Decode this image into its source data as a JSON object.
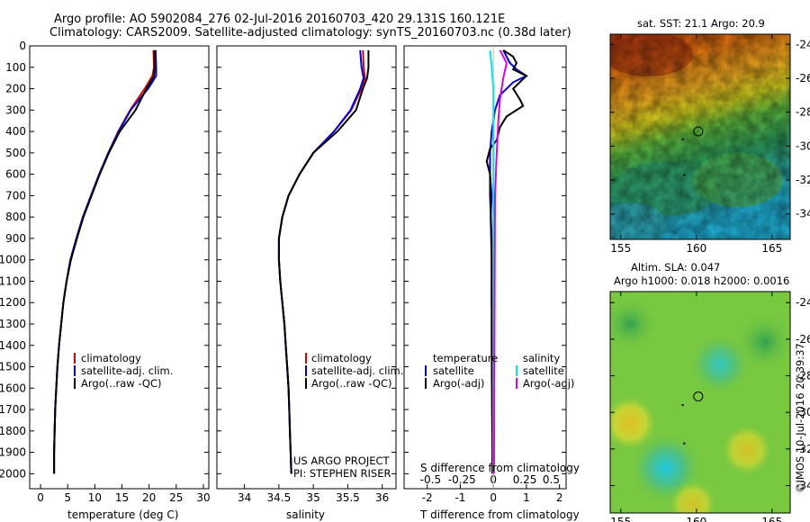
{
  "header": {
    "line1": "Argo profile: AO 5902084_276 02-Jul-2016 20160703_420 29.131S 160.121E",
    "line2": "Climatology: CARS2009. Satellite-adjusted climatology: synTS_20160703.nc (0.38d later)"
  },
  "colors": {
    "climatology": "#e00000",
    "satellite": "#0000e0",
    "argo": "#000000",
    "sal_satellite": "#00e8e8",
    "sal_argo": "#e000e0"
  },
  "chart_data": [
    {
      "type": "line",
      "name": "temperature",
      "xlabel": "temperature (deg C)",
      "ylabel": "",
      "xlim": [
        -2,
        31
      ],
      "ylim": [
        2070,
        0
      ],
      "xticks": [
        "0",
        "5",
        "10",
        "15",
        "20",
        "25",
        "30"
      ],
      "xtick_values": [
        0,
        5,
        10,
        15,
        20,
        25,
        30
      ],
      "yticks": [
        "0",
        "100",
        "200",
        "300",
        "400",
        "500",
        "600",
        "700",
        "800",
        "900",
        "1000",
        "1100",
        "1200",
        "1300",
        "1400",
        "1500",
        "1600",
        "1700",
        "1800",
        "1900",
        "2000"
      ],
      "legend": [
        "climatology",
        "satellite-adj. clim.",
        "Argo(..raw -QC)"
      ],
      "series": [
        {
          "name": "climatology",
          "color": "#e00000",
          "x": [
            20.8,
            20.9,
            20.6,
            19.2,
            16.5,
            14.3,
            12.5,
            10.8,
            9.3,
            7.8,
            6.6,
            5.5,
            4.8,
            4.2,
            3.8,
            3.4,
            3.1,
            2.9,
            2.7,
            2.6,
            2.5,
            2.5
          ],
          "y": [
            20,
            100,
            140,
            200,
            300,
            400,
            500,
            600,
            700,
            800,
            900,
            1000,
            1100,
            1200,
            1300,
            1400,
            1500,
            1600,
            1700,
            1800,
            1900,
            2000
          ]
        },
        {
          "name": "satellite-adj. clim.",
          "color": "#0000e0",
          "x": [
            21.2,
            21.3,
            21.3,
            19.8,
            16.6,
            14.4,
            12.5,
            10.8,
            9.3,
            7.8,
            6.6,
            5.5,
            4.8,
            4.2,
            3.8,
            3.4,
            3.1,
            2.9,
            2.7,
            2.6,
            2.5,
            2.5
          ],
          "y": [
            20,
            100,
            140,
            200,
            300,
            400,
            500,
            600,
            700,
            800,
            900,
            1000,
            1100,
            1200,
            1300,
            1400,
            1500,
            1600,
            1700,
            1800,
            1900,
            2000
          ]
        },
        {
          "name": "Argo(..raw -QC)",
          "color": "#000000",
          "x": [
            21.0,
            21.0,
            20.9,
            19.5,
            17.5,
            14.6,
            12.6,
            10.9,
            9.4,
            7.9,
            6.7,
            5.6,
            4.8,
            4.2,
            3.8,
            3.4,
            3.1,
            2.9,
            2.7,
            2.6,
            2.5,
            2.5
          ],
          "y": [
            20,
            100,
            140,
            200,
            300,
            400,
            500,
            600,
            700,
            800,
            900,
            1000,
            1100,
            1200,
            1300,
            1400,
            1500,
            1600,
            1700,
            1800,
            1900,
            2000
          ]
        }
      ]
    },
    {
      "type": "line",
      "name": "salinity",
      "xlabel": "salinity",
      "ylabel": "",
      "xlim": [
        33.6,
        36.2
      ],
      "ylim": [
        2070,
        0
      ],
      "xticks": [
        "34",
        "34.5",
        "35",
        "35.5",
        "36"
      ],
      "xtick_values": [
        34,
        34.5,
        35,
        35.5,
        36
      ],
      "legend": [
        "climatology",
        "satellite-adj. clim.",
        "Argo(..raw -QC)"
      ],
      "annotation": [
        "US ARGO PROJECT",
        "PI: STEPHEN RISER"
      ],
      "series": [
        {
          "name": "climatology",
          "color": "#e00000",
          "x": [
            35.72,
            35.73,
            35.75,
            35.7,
            35.55,
            35.3,
            35.0,
            34.8,
            34.64,
            34.55,
            34.5,
            34.5,
            34.52,
            34.55,
            34.58,
            34.6,
            34.62,
            34.64,
            34.65,
            34.66,
            34.67,
            34.68
          ],
          "y": [
            20,
            100,
            150,
            200,
            300,
            400,
            500,
            600,
            700,
            800,
            900,
            1000,
            1100,
            1200,
            1300,
            1400,
            1500,
            1600,
            1700,
            1800,
            1900,
            2000
          ]
        },
        {
          "name": "satellite-adj. clim.",
          "color": "#0000e0",
          "x": [
            35.68,
            35.7,
            35.73,
            35.68,
            35.54,
            35.3,
            35.0,
            34.8,
            34.64,
            34.55,
            34.5,
            34.5,
            34.52,
            34.55,
            34.58,
            34.6,
            34.62,
            34.64,
            34.65,
            34.66,
            34.67,
            34.68
          ],
          "y": [
            20,
            100,
            150,
            200,
            300,
            400,
            500,
            600,
            700,
            800,
            900,
            1000,
            1100,
            1200,
            1300,
            1400,
            1500,
            1600,
            1700,
            1800,
            1900,
            2000
          ]
        },
        {
          "name": "Argo(..raw -QC)",
          "color": "#000000",
          "x": [
            35.8,
            35.8,
            35.78,
            35.72,
            35.62,
            35.35,
            35.0,
            34.8,
            34.64,
            34.55,
            34.5,
            34.5,
            34.52,
            34.55,
            34.58,
            34.6,
            34.62,
            34.64,
            34.65,
            34.66,
            34.67,
            34.68
          ],
          "y": [
            20,
            100,
            150,
            200,
            300,
            400,
            500,
            600,
            700,
            800,
            900,
            1000,
            1100,
            1200,
            1300,
            1400,
            1500,
            1600,
            1700,
            1800,
            1900,
            2000
          ]
        }
      ]
    },
    {
      "type": "line",
      "name": "difference",
      "xlabel": "T difference from climatology",
      "top_label": "S difference from climatology",
      "xlim": [
        -2.7,
        2.2
      ],
      "ylim": [
        2070,
        0
      ],
      "xticks": [
        "-2",
        "-1",
        "0",
        "1",
        "2"
      ],
      "xtick_values": [
        -2,
        -1,
        0,
        1,
        2
      ],
      "top_ticks": [
        "-0.5",
        "-0.25",
        "0",
        "0.25",
        "0.5"
      ],
      "top_tick_positions_T": [
        -1.9,
        -0.95,
        0,
        0.95,
        1.75
      ],
      "legend_temperature_title": "temperature",
      "legend_salinity_title": "salinity",
      "legend_temperature": [
        "satellite",
        "Argo(-adj)"
      ],
      "legend_salinity": [
        "satellite",
        "Argo(-adj)"
      ],
      "series": [
        {
          "name": "T satellite",
          "color": "#0000e0",
          "x": [
            0.3,
            0.4,
            0.5,
            0.7,
            1.0,
            0.6,
            0.2,
            0.05,
            -0.05,
            -0.1,
            -0.1,
            -0.05,
            -0.08,
            -0.05,
            -0.05,
            -0.03,
            -0.03,
            -0.02,
            -0.02,
            -0.02
          ],
          "y": [
            20,
            50,
            80,
            110,
            140,
            170,
            230,
            300,
            400,
            500,
            600,
            700,
            800,
            1000,
            1200,
            1400,
            1600,
            1800,
            1900,
            2000
          ]
        },
        {
          "name": "T Argo(-adj)",
          "color": "#000000",
          "x": [
            0.3,
            0.6,
            0.7,
            0.6,
            1.0,
            0.6,
            0.8,
            0.9,
            0.4,
            0.2,
            0.1,
            -0.1,
            -0.2,
            -0.1,
            -0.1,
            -0.05,
            -0.05,
            -0.05,
            -0.04,
            -0.03,
            -0.03
          ],
          "y": [
            20,
            50,
            80,
            110,
            140,
            200,
            250,
            280,
            330,
            380,
            440,
            480,
            540,
            600,
            700,
            900,
            1100,
            1400,
            1700,
            1900,
            2000
          ]
        },
        {
          "name": "S satellite",
          "color": "#00e8e8",
          "x": [
            -0.1,
            -0.05,
            0.0,
            0.0,
            0.0,
            0.0,
            0.0,
            0.0,
            0.0,
            0.0
          ],
          "y": [
            20,
            100,
            200,
            300,
            400,
            600,
            900,
            1200,
            1600,
            2000
          ]
        },
        {
          "name": "S Argo(-adj)",
          "color": "#e000e0",
          "x": [
            0.2,
            0.4,
            0.3,
            0.2,
            0.15,
            0.1,
            0.05,
            0.04,
            0.03,
            0.02
          ],
          "y": [
            20,
            80,
            150,
            250,
            350,
            500,
            700,
            1000,
            1500,
            2000
          ]
        }
      ]
    }
  ],
  "maps": {
    "sst": {
      "title": "sat. SST: 21.1  Argo: 20.9",
      "xticks": [
        "155",
        "160",
        "165"
      ],
      "yticks": [
        "-24",
        "-26",
        "-28",
        "-30",
        "-32",
        "-34"
      ],
      "float_lon": 160.121,
      "float_lat": -29.131
    },
    "sla": {
      "title_line1": "Altim. SLA: 0.047",
      "title_line2": "Argo h1000: 0.018 h2000: 0.0016",
      "xticks": [
        "155",
        "160",
        "165"
      ],
      "yticks": [
        "-24",
        "-26",
        "-28",
        "-30",
        "-32",
        "-34"
      ],
      "float_lon": 160.121,
      "float_lat": -29.131
    }
  },
  "footer": {
    "side_stamp": "©IMOS 10-Jul-2016 20:39:37"
  }
}
